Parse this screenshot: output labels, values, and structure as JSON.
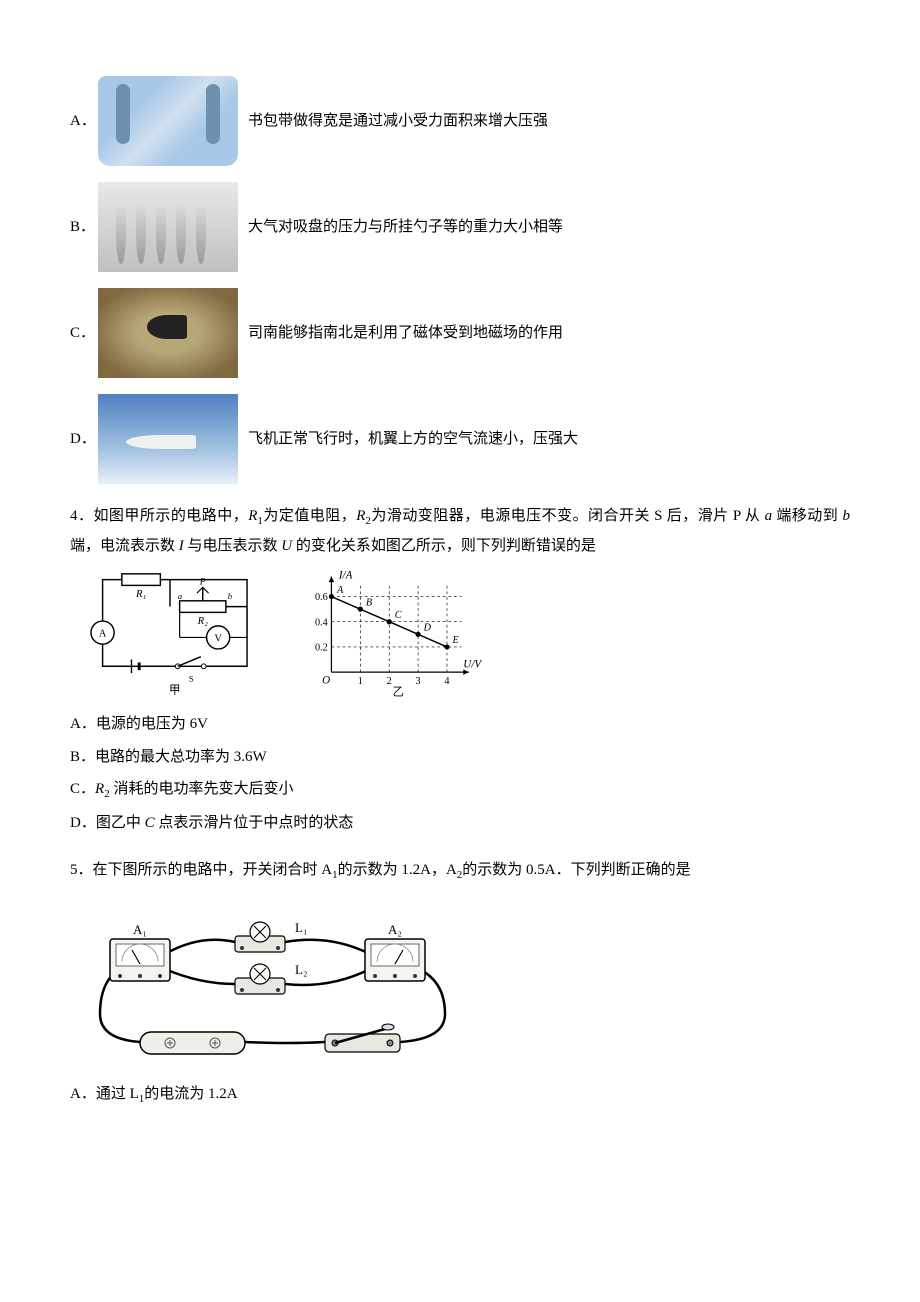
{
  "q3": {
    "options": [
      {
        "letter": "A．",
        "text": "书包带做得宽是通过减小受力面积来增大压强"
      },
      {
        "letter": "B．",
        "text": "大气对吸盘的压力与所挂勺子等的重力大小相等"
      },
      {
        "letter": "C．",
        "text": "司南能够指南北是利用了磁体受到地磁场的作用"
      },
      {
        "letter": "D．",
        "text": "飞机正常飞行时，机翼上方的空气流速小，压强大"
      }
    ]
  },
  "q4": {
    "number": "4．",
    "stem_parts": {
      "p1": "如图甲所示的电路中，",
      "r1": "R",
      "r1_sub": "1",
      "p2": "为定值电阻，",
      "r2": "R",
      "r2_sub": "2",
      "p3": "为滑动变阻器，电源电压不变。闭合开关 S 后，滑片 P 从 ",
      "a": "a",
      "p4": " 端移动到 ",
      "b": "b",
      "p5": " 端，电流表示数 ",
      "I": "I",
      "p6": " 与电压表示数 ",
      "U": "U",
      "p7": " 的变化关系如图乙所示，则下列判断错误的是"
    },
    "chart_labels": {
      "yaxis": "I/A",
      "xaxis": "U/V",
      "pointA": "A",
      "pointB": "B",
      "pointC": "C",
      "pointD": "D",
      "pointE": "E",
      "jia": "甲",
      "yi": "乙"
    },
    "chart": {
      "xlim": [
        0,
        4.5
      ],
      "ylim": [
        0,
        0.7
      ],
      "xticks": [
        1,
        2,
        3,
        4
      ],
      "yticks": [
        0.2,
        0.4,
        0.6
      ],
      "points": [
        {
          "x": 0,
          "y": 0.6
        },
        {
          "x": 1,
          "y": 0.5
        },
        {
          "x": 2,
          "y": 0.4
        },
        {
          "x": 3,
          "y": 0.3
        },
        {
          "x": 4,
          "y": 0.2
        }
      ],
      "line_color": "#000",
      "grid_color": "#000",
      "grid_dash": "3,3"
    },
    "answers": {
      "A_pre": "A．电源的电压为 6V",
      "B_pre": "B．电路的最大总功率为 3.6W",
      "C_letter": "C．",
      "C_R": "R",
      "C_sub": "2",
      "C_rest": " 消耗的电功率先变大后变小",
      "D_letter": "D．图乙中 ",
      "D_C": "C",
      "D_rest": " 点表示滑片位于中点时的状态"
    }
  },
  "q5": {
    "number": "5．",
    "stem_parts": {
      "p1": "在下图所示的电路中，开关闭合时 A",
      "s1": "1",
      "p2": "的示数为 1.2A，A",
      "s2": "2",
      "p3": "的示数为 0.5A．下列判断正确的是"
    },
    "labels": {
      "A1": "A₁",
      "A2": "A₂",
      "L1": "L₁",
      "L2": "L₂"
    },
    "answers": {
      "A_letter": "A．通过 L",
      "A_sub": "1",
      "A_rest": "的电流为 1.2A"
    }
  }
}
